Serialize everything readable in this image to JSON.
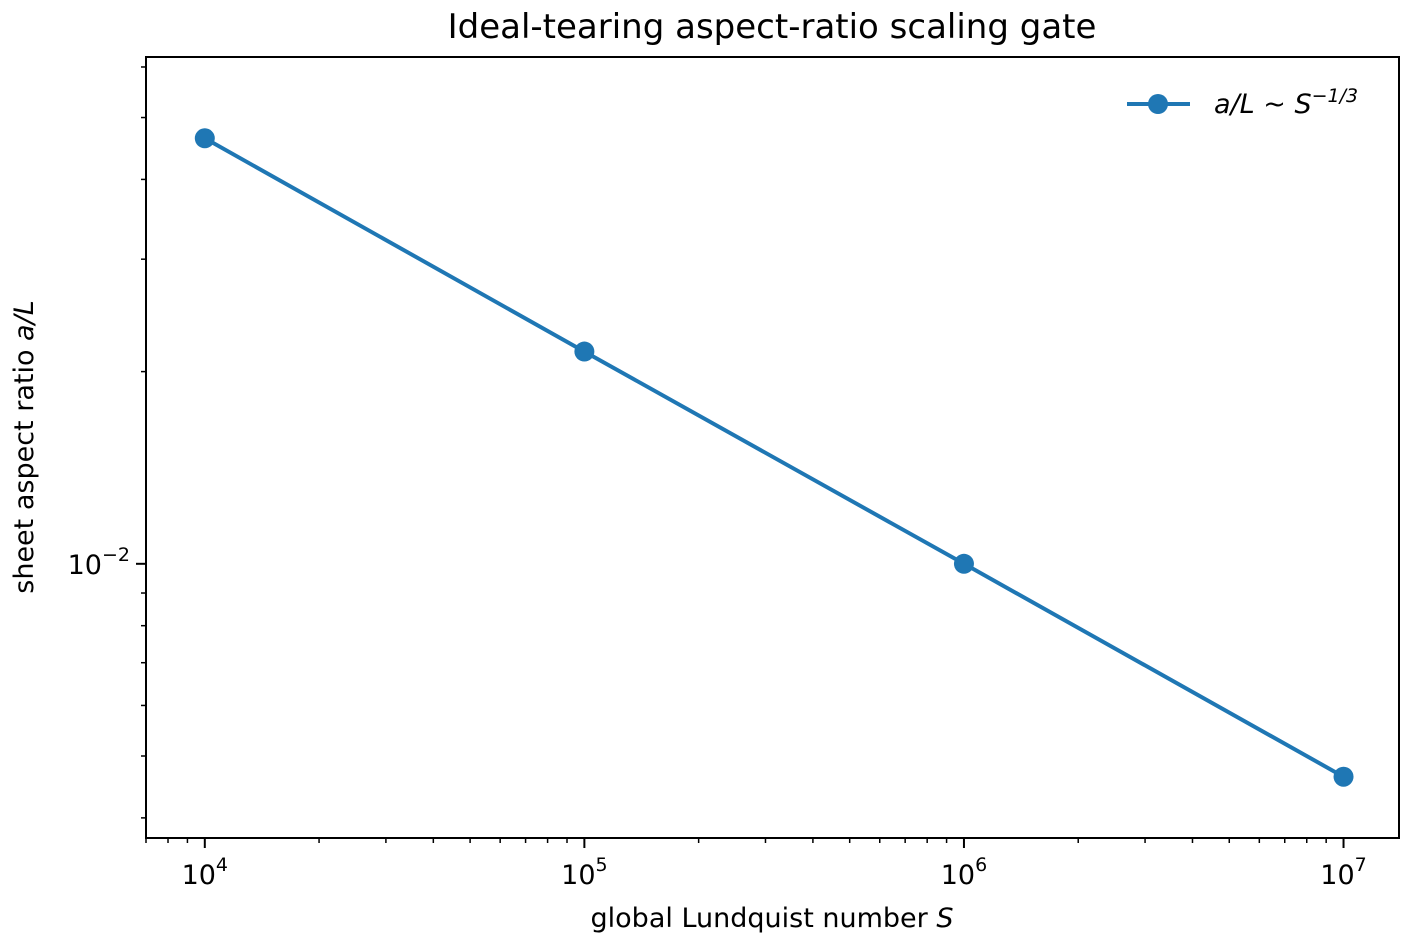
{
  "chart_data": {
    "type": "line",
    "title": "Ideal-tearing aspect-ratio scaling gate",
    "xlabel": {
      "text": "global Lundquist number ",
      "var": "S"
    },
    "ylabel": {
      "text": "sheet aspect ratio ",
      "var": "a/L"
    },
    "x_scale": "log",
    "y_scale": "log",
    "xlim": [
      7000,
      14000000
    ],
    "ylim": [
      0.00372,
      0.0622
    ],
    "x_ticks": [
      {
        "value": 10000,
        "base": "10",
        "exp": "4"
      },
      {
        "value": 100000,
        "base": "10",
        "exp": "5"
      },
      {
        "value": 1000000,
        "base": "10",
        "exp": "6"
      },
      {
        "value": 10000000,
        "base": "10",
        "exp": "7"
      }
    ],
    "y_ticks": [
      {
        "value": 0.01,
        "base": "10",
        "exp": "−2"
      }
    ],
    "grid": false,
    "legend": {
      "position": "top-right"
    },
    "series": [
      {
        "name": "a/L ~ S^(-1/3)",
        "legend_main": "a/L ~ S",
        "legend_exp": "−1/3",
        "color": "#1f77b4",
        "x": [
          10000,
          100000,
          1000000,
          10000000
        ],
        "y": [
          0.0464,
          0.0215,
          0.01,
          0.00464
        ]
      }
    ]
  }
}
